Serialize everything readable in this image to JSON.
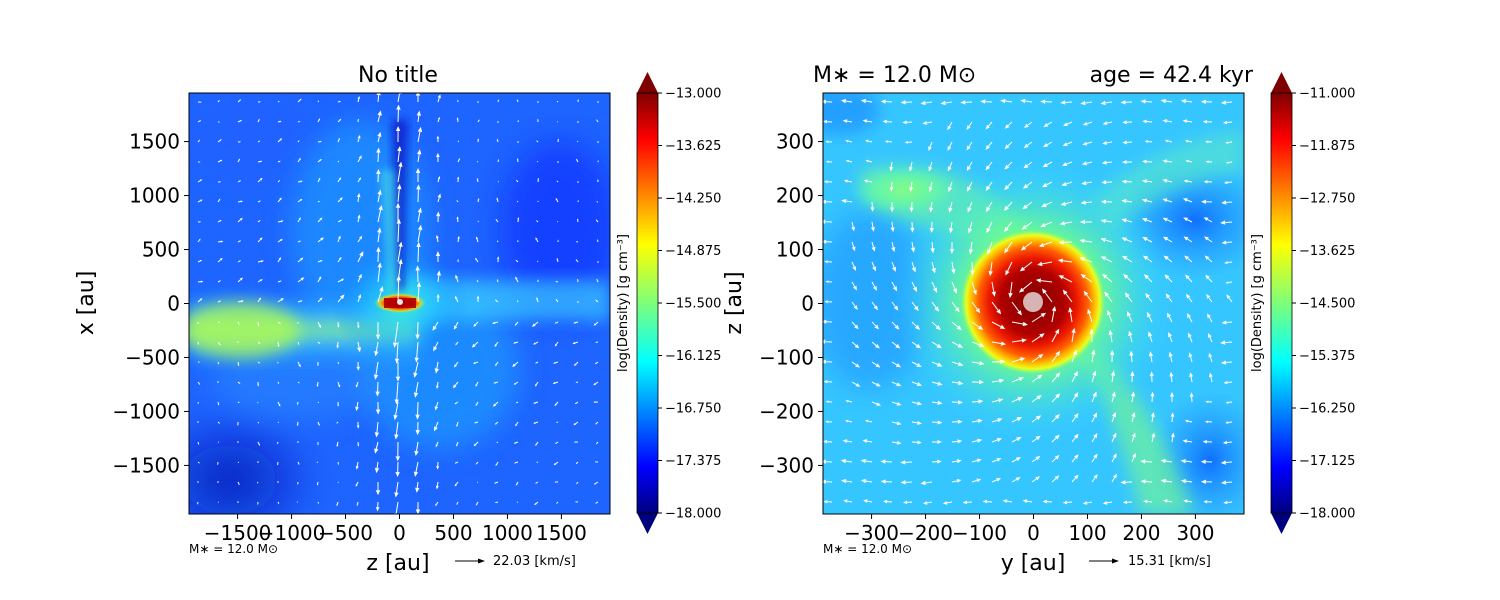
{
  "panels": [
    {
      "title": "No title",
      "title_left": "",
      "title_right": "",
      "xlabel": "z [au]",
      "ylabel": "x [au]",
      "xticks": [
        -1500,
        -1000,
        -500,
        0,
        500,
        1000,
        1500
      ],
      "yticks": [
        1500,
        1000,
        500,
        0,
        -500,
        -1000,
        -1500
      ],
      "xlim": [
        -1950,
        1950
      ],
      "ylim": [
        -1950,
        1950
      ],
      "mass_note": "M∗ = 12.0 M⊙",
      "quiver_key": "22.03 [km/s]",
      "colorbar_label": "log(Density) [g cm⁻³]",
      "colorbar_ticks": [
        "−13.000",
        "−13.625",
        "−14.250",
        "−14.875",
        "−15.500",
        "−16.125",
        "−16.750",
        "−17.375",
        "−18.000"
      ]
    },
    {
      "title": "",
      "title_left": "M∗ = 12.0 M⊙",
      "title_right": "age = 42.4 kyr",
      "xlabel": "y [au]",
      "ylabel": "z [au]",
      "xticks": [
        -300,
        -200,
        -100,
        0,
        100,
        200,
        300
      ],
      "yticks": [
        300,
        200,
        100,
        0,
        -100,
        -200,
        -300
      ],
      "xlim": [
        -390,
        390
      ],
      "ylim": [
        -390,
        390
      ],
      "mass_note": "M∗ = 12.0 M⊙",
      "quiver_key": "15.31 [km/s]",
      "colorbar_label": "log(Density) [g cm⁻³]",
      "colorbar_ticks": [
        "−11.000",
        "−11.875",
        "−12.750",
        "−13.625",
        "−14.500",
        "−15.375",
        "−16.250",
        "−17.125",
        "−18.000"
      ]
    }
  ],
  "chart_data": [
    {
      "type": "heatmap",
      "title": "No title",
      "xlabel": "z [au]",
      "ylabel": "x [au]",
      "xlim": [
        -1950,
        1950
      ],
      "ylim": [
        -1950,
        1950
      ],
      "colorbar": {
        "label": "log(Density) [g cm⁻³]",
        "range": [
          -18.0,
          -13.0
        ],
        "colormap": "jet",
        "extend": "both"
      },
      "features": [
        {
          "name": "central source",
          "x": 0,
          "y": 0,
          "value": -13.0
        },
        {
          "name": "disk / filament along z",
          "y": -100,
          "value": -15.0
        },
        {
          "name": "outflow cavity along +x",
          "x": 0,
          "value": -17.5
        }
      ],
      "quiver_key": {
        "speed_km_s": 22.03
      },
      "grid": false
    },
    {
      "type": "heatmap",
      "title": "M∗ = 12.0 M⊙    age = 42.4 kyr",
      "xlabel": "y [au]",
      "ylabel": "z [au]",
      "xlim": [
        -390,
        390
      ],
      "ylim": [
        -390,
        390
      ],
      "colorbar": {
        "label": "log(Density) [g cm⁻³]",
        "range": [
          -18.0,
          -11.0
        ],
        "colormap": "jet",
        "extend": "both"
      },
      "features": [
        {
          "name": "central core",
          "x": 0,
          "y": 0,
          "radius_au": 110,
          "value": -11.0
        },
        {
          "name": "stream to upper-left",
          "x": -250,
          "y": 180,
          "value": -14.0
        },
        {
          "name": "stream to lower-right",
          "x": 180,
          "y": -300,
          "value": -14.0
        }
      ],
      "quiver_key": {
        "speed_km_s": 15.31
      },
      "grid": false
    }
  ],
  "colors": {
    "jet_low": "#00007f",
    "jet_high": "#7f0000",
    "arrow": "#ffffff",
    "star": "#d9b3b3"
  }
}
